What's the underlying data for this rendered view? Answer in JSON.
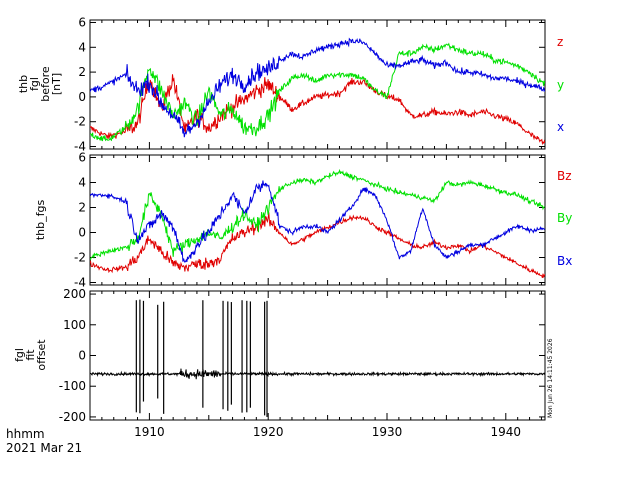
{
  "colors": {
    "red": "#e00000",
    "green": "#00e000",
    "blue": "#0000e0",
    "black": "#000000"
  },
  "footer": {
    "line1": "hhmm",
    "line2": "2021 Mar 21"
  },
  "timestamp": "Mon Jun 26 14:11:45 2026",
  "chart_data": [
    {
      "type": "line",
      "ylabel_lines": [
        "thb",
        "fgl",
        "before",
        "[nT]"
      ],
      "ylim": [
        -4.2,
        6.2
      ],
      "yticks": [
        -4,
        -2,
        0,
        2,
        4,
        6
      ],
      "xlim": [
        1905.0,
        1943.3
      ],
      "series": [
        {
          "name": "z",
          "color": "#e00000",
          "t": [
            1905.0,
            1906.5,
            1908.0,
            1909.0,
            1910.0,
            1911.0,
            1912.0,
            1913.0,
            1914.0,
            1915.0,
            1916.0,
            1917.0,
            1918.0,
            1919.0,
            1920.0,
            1921.0,
            1922.0,
            1924.0,
            1926.0,
            1927.0,
            1928.0,
            1929.0,
            1930.0,
            1931.0,
            1932.0,
            1933.0,
            1934.0,
            1935.0,
            1936.0,
            1937.0,
            1938.0,
            1939.0,
            1940.0,
            1941.0,
            1942.0,
            1943.3
          ],
          "v": [
            -2.5,
            -3.2,
            -2.8,
            -2.2,
            1.5,
            -1.0,
            1.5,
            -2.8,
            -1.5,
            -2.5,
            -1.5,
            -0.8,
            -0.2,
            0.5,
            1.0,
            0.0,
            -1.0,
            0.0,
            0.3,
            1.2,
            1.2,
            0.5,
            0.0,
            -0.2,
            -1.5,
            -1.5,
            -1.2,
            -1.4,
            -1.2,
            -1.5,
            -1.2,
            -1.5,
            -1.8,
            -2.2,
            -3.0,
            -3.8
          ]
        },
        {
          "name": "y",
          "color": "#00e000",
          "t": [
            1905.0,
            1906.5,
            1908.0,
            1909.0,
            1910.0,
            1911.0,
            1912.0,
            1913.0,
            1914.0,
            1915.0,
            1916.0,
            1917.0,
            1918.0,
            1919.0,
            1920.0,
            1921.0,
            1922.0,
            1923.0,
            1924.0,
            1925.0,
            1926.0,
            1927.0,
            1928.0,
            1929.0,
            1930.0,
            1931.0,
            1932.0,
            1933.0,
            1934.0,
            1935.0,
            1936.0,
            1937.0,
            1938.0,
            1939.0,
            1940.0,
            1941.0,
            1942.0,
            1943.3
          ],
          "v": [
            -3.0,
            -3.5,
            -2.5,
            -1.0,
            2.5,
            0.5,
            -1.5,
            -0.5,
            -2.0,
            0.5,
            -1.5,
            -1.0,
            -2.5,
            -2.5,
            -1.5,
            0.5,
            1.5,
            1.8,
            1.2,
            1.8,
            1.8,
            1.8,
            1.5,
            0.5,
            0.0,
            3.5,
            3.5,
            4.0,
            3.8,
            4.2,
            3.8,
            3.5,
            3.5,
            3.0,
            2.8,
            2.5,
            2.0,
            1.0
          ]
        },
        {
          "name": "x",
          "color": "#0000e0",
          "t": [
            1905.0,
            1906.5,
            1908.0,
            1909.0,
            1910.0,
            1911.0,
            1912.0,
            1913.0,
            1914.0,
            1915.0,
            1916.0,
            1917.0,
            1918.0,
            1919.0,
            1920.0,
            1921.0,
            1922.0,
            1923.0,
            1924.0,
            1925.0,
            1926.0,
            1927.0,
            1928.0,
            1929.0,
            1930.0,
            1931.0,
            1932.0,
            1933.0,
            1934.0,
            1935.0,
            1936.0,
            1937.0,
            1938.0,
            1939.0,
            1940.0,
            1941.0,
            1942.0,
            1943.3
          ],
          "v": [
            0.5,
            1.0,
            1.8,
            0.5,
            1.2,
            -0.5,
            -1.5,
            -3.0,
            -2.0,
            -0.5,
            1.0,
            1.8,
            1.0,
            2.0,
            2.2,
            3.0,
            3.5,
            3.2,
            3.8,
            4.0,
            4.3,
            4.5,
            4.4,
            3.5,
            2.5,
            2.5,
            2.8,
            3.0,
            2.5,
            2.8,
            2.0,
            2.0,
            1.8,
            1.5,
            1.5,
            1.2,
            1.0,
            0.6
          ]
        }
      ]
    },
    {
      "type": "line",
      "ylabel_lines": [
        "thb_fgs"
      ],
      "ylim": [
        -4.2,
        6.2
      ],
      "yticks": [
        -4,
        -2,
        0,
        2,
        4,
        6
      ],
      "xlim": [
        1905.0,
        1943.3
      ],
      "series": [
        {
          "name": "Bz",
          "color": "#e00000",
          "t": [
            1905.0,
            1906.5,
            1908.0,
            1909.0,
            1910.0,
            1911.0,
            1912.0,
            1913.0,
            1914.0,
            1915.0,
            1916.0,
            1917.0,
            1918.0,
            1919.0,
            1920.0,
            1921.0,
            1922.0,
            1924.0,
            1926.0,
            1927.0,
            1928.0,
            1929.0,
            1930.0,
            1931.0,
            1932.0,
            1933.0,
            1934.0,
            1935.0,
            1936.0,
            1937.0,
            1938.0,
            1939.0,
            1940.0,
            1941.0,
            1942.0,
            1943.3
          ],
          "v": [
            -2.5,
            -3.0,
            -2.8,
            -2.0,
            -0.5,
            -1.5,
            -2.5,
            -2.8,
            -2.5,
            -2.5,
            -2.0,
            -0.5,
            0.0,
            0.5,
            1.0,
            0.0,
            -1.0,
            0.0,
            0.8,
            1.2,
            1.2,
            0.5,
            0.0,
            -0.5,
            -1.0,
            -1.2,
            -0.8,
            -1.2,
            -1.0,
            -1.5,
            -1.0,
            -1.5,
            -2.0,
            -2.5,
            -3.0,
            -3.5
          ]
        },
        {
          "name": "By",
          "color": "#00e000",
          "t": [
            1905.0,
            1906.5,
            1908.0,
            1909.0,
            1910.0,
            1911.0,
            1912.0,
            1913.0,
            1914.0,
            1915.0,
            1916.0,
            1917.0,
            1918.0,
            1919.0,
            1920.0,
            1921.0,
            1922.0,
            1923.0,
            1924.0,
            1925.0,
            1926.0,
            1927.0,
            1928.0,
            1929.0,
            1930.0,
            1931.0,
            1932.0,
            1933.0,
            1934.0,
            1935.0,
            1936.0,
            1937.0,
            1938.0,
            1939.0,
            1940.0,
            1941.0,
            1942.0,
            1943.3
          ],
          "v": [
            -2.0,
            -1.5,
            -1.2,
            -0.5,
            3.0,
            1.5,
            -1.5,
            -1.0,
            -0.5,
            0.0,
            -0.5,
            0.5,
            1.5,
            0.5,
            2.0,
            3.5,
            4.0,
            4.2,
            4.0,
            4.5,
            4.8,
            4.5,
            4.2,
            3.8,
            3.5,
            3.2,
            3.0,
            2.8,
            2.5,
            4.0,
            3.8,
            4.0,
            3.8,
            3.5,
            3.2,
            3.0,
            2.5,
            2.0
          ]
        },
        {
          "name": "Bx",
          "color": "#0000e0",
          "t": [
            1905.0,
            1906.5,
            1908.0,
            1909.0,
            1910.0,
            1911.0,
            1912.0,
            1913.0,
            1914.0,
            1915.0,
            1916.0,
            1917.0,
            1918.0,
            1919.0,
            1920.0,
            1921.0,
            1922.0,
            1923.0,
            1924.0,
            1925.0,
            1926.0,
            1927.0,
            1928.0,
            1929.0,
            1930.0,
            1931.0,
            1932.0,
            1933.0,
            1934.0,
            1935.0,
            1936.0,
            1937.0,
            1938.0,
            1939.0,
            1940.0,
            1941.0,
            1942.0,
            1943.3
          ],
          "v": [
            3.0,
            3.0,
            2.5,
            -0.5,
            0.5,
            1.5,
            0.5,
            -2.5,
            -1.0,
            0.0,
            1.5,
            3.0,
            1.5,
            3.5,
            4.0,
            0.5,
            0.0,
            0.5,
            0.5,
            0.0,
            1.0,
            2.0,
            3.5,
            3.0,
            1.0,
            -2.0,
            -1.5,
            2.0,
            -1.0,
            -2.0,
            -1.5,
            -1.0,
            -1.0,
            -0.5,
            0.0,
            0.5,
            0.2,
            0.3
          ]
        }
      ]
    },
    {
      "type": "line",
      "ylabel_lines": [
        "fgl",
        "fit",
        "offset"
      ],
      "ylim": [
        -210,
        210
      ],
      "yticks": [
        -200,
        -100,
        0,
        100,
        200
      ],
      "xlim": [
        1905.0,
        1943.3
      ],
      "xticks": [
        1910,
        1920,
        1930,
        1940
      ],
      "baseline": -60,
      "series": [
        {
          "name": "",
          "color": "#000000",
          "spikes": [
            {
              "t": 1908.9,
              "lo": -185,
              "hi": 180
            },
            {
              "t": 1909.2,
              "lo": -188,
              "hi": 182
            },
            {
              "t": 1909.5,
              "lo": -150,
              "hi": 178
            },
            {
              "t": 1910.7,
              "lo": -140,
              "hi": 165
            },
            {
              "t": 1911.2,
              "lo": -190,
              "hi": 175
            },
            {
              "t": 1914.5,
              "lo": -170,
              "hi": 180
            },
            {
              "t": 1916.2,
              "lo": -175,
              "hi": 178
            },
            {
              "t": 1916.6,
              "lo": -180,
              "hi": 176
            },
            {
              "t": 1916.9,
              "lo": -160,
              "hi": 174
            },
            {
              "t": 1917.8,
              "lo": -186,
              "hi": 180
            },
            {
              "t": 1918.2,
              "lo": -185,
              "hi": 178
            },
            {
              "t": 1918.5,
              "lo": -170,
              "hi": 176
            },
            {
              "t": 1919.7,
              "lo": -195,
              "hi": 175
            },
            {
              "t": 1919.9,
              "lo": -200,
              "hi": 178
            }
          ]
        }
      ]
    }
  ]
}
